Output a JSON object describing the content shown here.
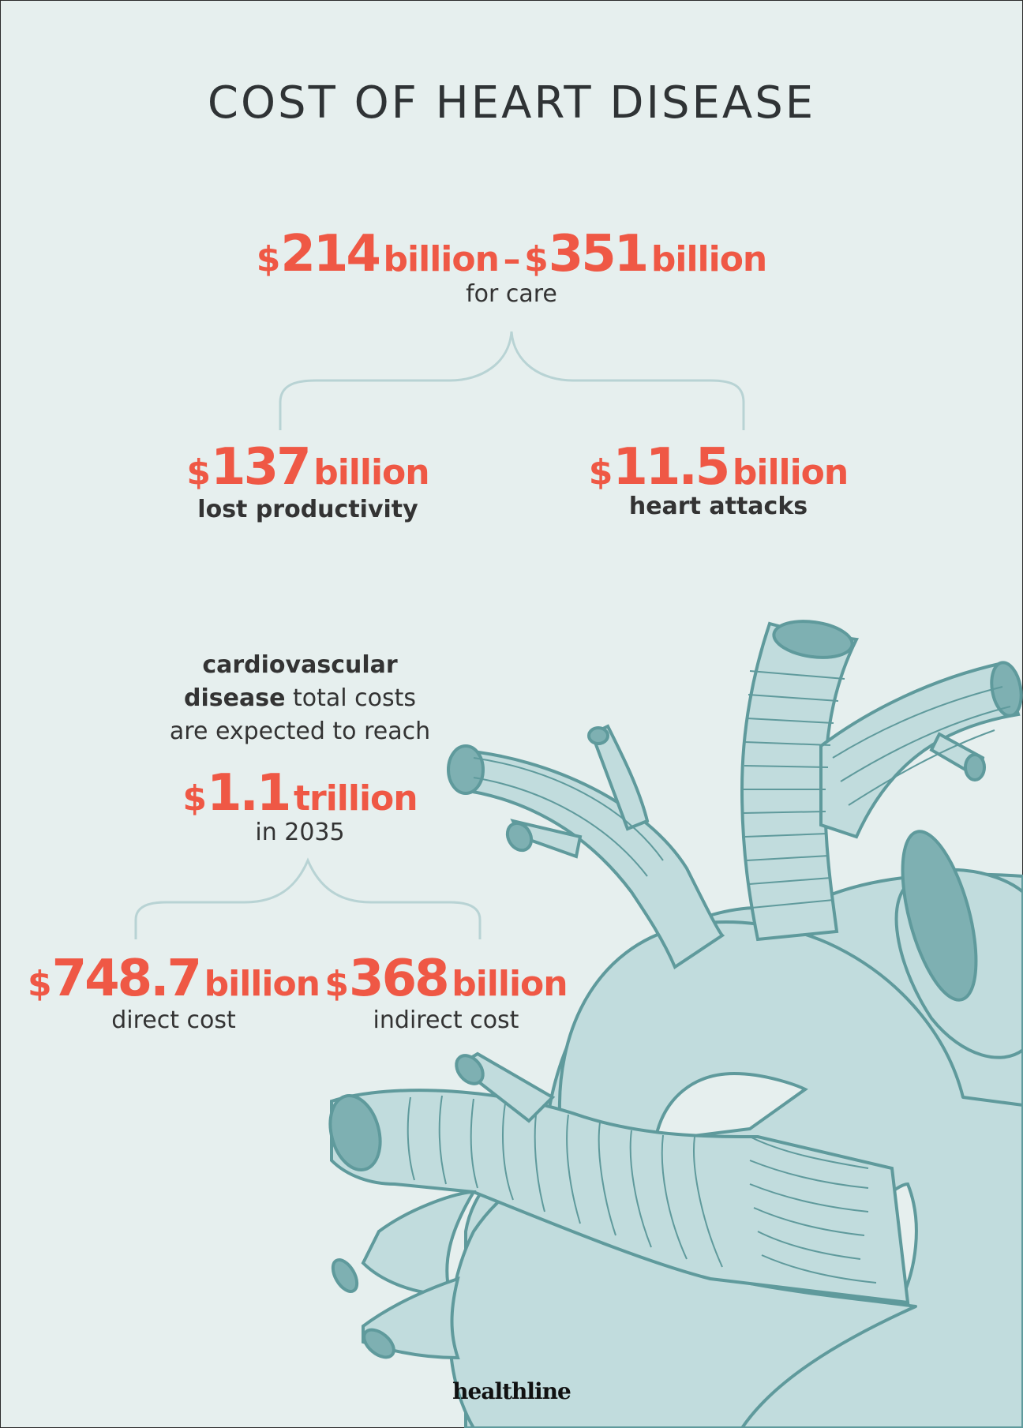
{
  "title": "COST OF HEART DISEASE",
  "care": {
    "low_dollar": "$",
    "low": "214",
    "low_unit": "billion",
    "dash": "–",
    "high_dollar": "$",
    "high": "351",
    "high_unit": "billion",
    "label": "for care"
  },
  "productivity": {
    "dollar": "$",
    "num": "137",
    "unit": "billion",
    "label": "lost productivity"
  },
  "heart_attacks": {
    "dollar": "$",
    "num": "11.5",
    "unit": "billion",
    "label": "heart attacks"
  },
  "projection": {
    "bold_1": "cardiovascular",
    "bold_2": "disease",
    "text_2": " total costs",
    "text_3": "are expected to reach",
    "dollar": "$",
    "num": "1.1",
    "unit": "trillion",
    "year_label": "in 2035"
  },
  "direct": {
    "dollar": "$",
    "num": "748.7",
    "unit": "billion",
    "label": "direct cost"
  },
  "indirect": {
    "dollar": "$",
    "num": "368",
    "unit": "billion",
    "label": "indirect cost"
  },
  "brand": "healthline",
  "colors": {
    "accent": "#ef5845",
    "background": "#e6efee",
    "heart_fill": "#c1dcdd",
    "heart_stroke": "#5f9a9c",
    "heart_dark": "#7eb0b2",
    "bracket": "#b8d3d4"
  }
}
